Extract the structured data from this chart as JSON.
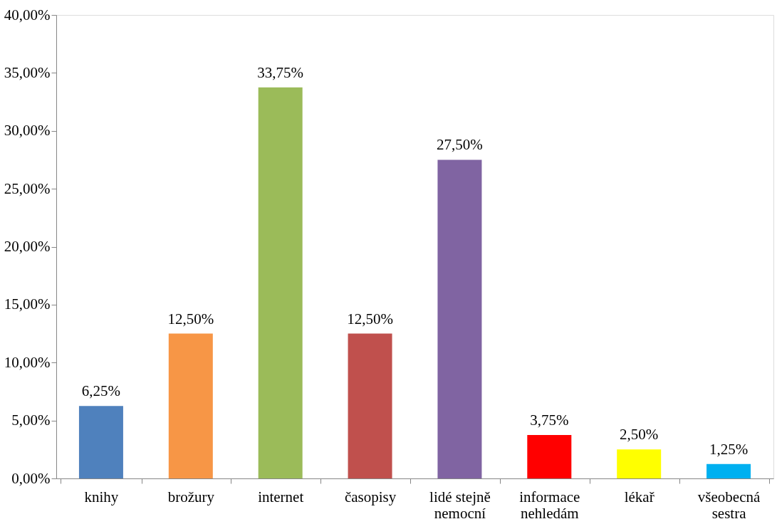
{
  "chart_data": {
    "type": "bar",
    "categories": [
      "knihy",
      "brožury",
      "internet",
      "časopisy",
      "lidé stejně\nnemocní",
      "informace\nnehledám",
      "lékař",
      "všeobecná\nsestra"
    ],
    "values": [
      6.25,
      12.5,
      33.75,
      12.5,
      27.5,
      3.75,
      2.5,
      1.25
    ],
    "value_labels": [
      "6,25%",
      "12,50%",
      "33,75%",
      "12,50%",
      "27,50%",
      "3,75%",
      "2,50%",
      "1,25%"
    ],
    "colors": [
      "#4f81bd",
      "#f79646",
      "#9bbb59",
      "#c0504d",
      "#8064a2",
      "#ff0000",
      "#ffff00",
      "#00b0f0"
    ],
    "ylim": [
      0,
      40
    ],
    "yticks": [
      {
        "value": 0,
        "label": "0,00%"
      },
      {
        "value": 5,
        "label": "5,00%"
      },
      {
        "value": 10,
        "label": "10,00%"
      },
      {
        "value": 15,
        "label": "15,00%"
      },
      {
        "value": 20,
        "label": "20,00%"
      },
      {
        "value": 25,
        "label": "25,00%"
      },
      {
        "value": 30,
        "label": "30,00%"
      },
      {
        "value": 35,
        "label": "35,00%"
      },
      {
        "value": 40,
        "label": "40,00%"
      }
    ],
    "grid": false
  }
}
